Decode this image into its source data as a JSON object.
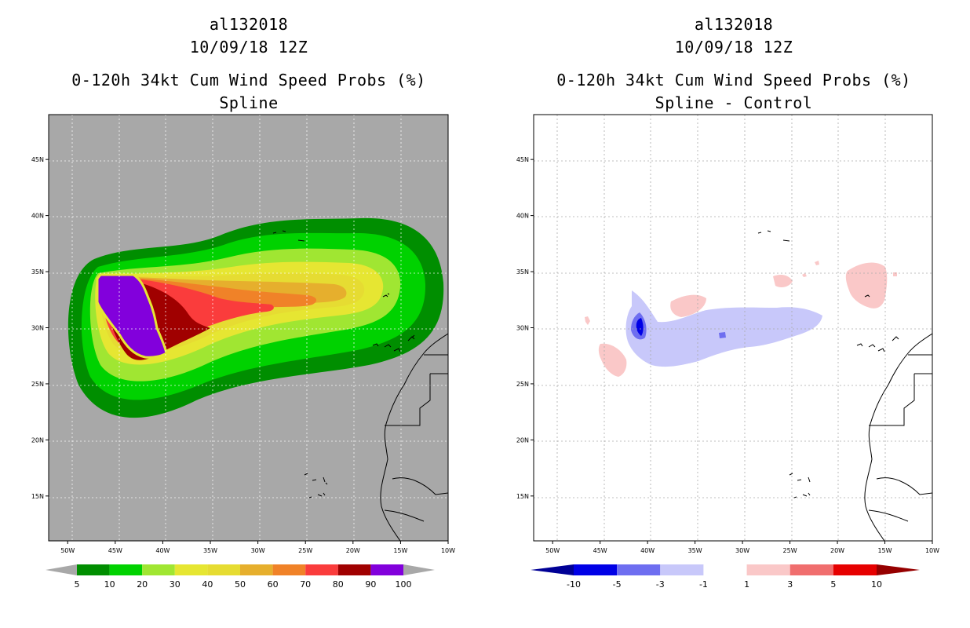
{
  "chart_data": [
    {
      "type": "heatmap",
      "panel": "left",
      "title_line1": "al132018",
      "title_line2": "10/09/18 12Z",
      "title_line3": "0-120h 34kt Cum Wind Speed Probs (%)",
      "subtitle": "Spline",
      "x_ticks": [
        "50W",
        "45W",
        "40W",
        "35W",
        "30W",
        "25W",
        "20W",
        "15W",
        "10W"
      ],
      "x_tick_values": [
        -50,
        -45,
        -40,
        -35,
        -30,
        -25,
        -20,
        -15,
        -10
      ],
      "y_ticks": [
        "15N",
        "20N",
        "25N",
        "30N",
        "35N",
        "40N",
        "45N"
      ],
      "y_tick_values": [
        15,
        20,
        25,
        30,
        35,
        40,
        45
      ],
      "xlim": [
        -52,
        -10
      ],
      "ylim": [
        11,
        49
      ],
      "grid": true,
      "background_color": "#a8a8a8",
      "colorbar_labels": [
        "5",
        "10",
        "20",
        "30",
        "40",
        "50",
        "60",
        "70",
        "80",
        "90",
        "100"
      ],
      "colorbar_colors": [
        "#008e00",
        "#00d200",
        "#a0e632",
        "#e6e632",
        "#e6dc32",
        "#e6af2d",
        "#f08228",
        "#fa3c3c",
        "#a00000",
        "#8200dc"
      ],
      "contour_levels": [
        5,
        10,
        20,
        30,
        40,
        50,
        60,
        70,
        80,
        90,
        100
      ],
      "description_peak": "max probability near 47W-42W, 28N-34N"
    },
    {
      "type": "heatmap",
      "panel": "right",
      "title_line1": "al132018",
      "title_line2": "10/09/18 12Z",
      "title_line3": "0-120h 34kt Cum Wind Speed Probs (%)",
      "subtitle": "Spline - Control",
      "x_ticks": [
        "50W",
        "45W",
        "40W",
        "35W",
        "30W",
        "25W",
        "20W",
        "15W",
        "10W"
      ],
      "x_tick_values": [
        -50,
        -45,
        -40,
        -35,
        -30,
        -25,
        -20,
        -15,
        -10
      ],
      "y_ticks": [
        "15N",
        "20N",
        "25N",
        "30N",
        "35N",
        "40N",
        "45N"
      ],
      "y_tick_values": [
        15,
        20,
        25,
        30,
        35,
        40,
        45
      ],
      "xlim": [
        -52,
        -10
      ],
      "ylim": [
        11,
        49
      ],
      "grid": true,
      "background_color": "#ffffff",
      "colorbar_labels": [
        "-10",
        "-5",
        "-3",
        "-1",
        "1",
        "3",
        "5",
        "10"
      ],
      "colorbar_colors": [
        "#000096",
        "#0000e6",
        "#6e6ef0",
        "#c8c8fa",
        "#ffffff",
        "#fac8c8",
        "#f06e6e",
        "#e60000",
        "#960000"
      ],
      "contour_levels": [
        -10,
        -5,
        -3,
        -1,
        1,
        3,
        5,
        10
      ]
    }
  ]
}
